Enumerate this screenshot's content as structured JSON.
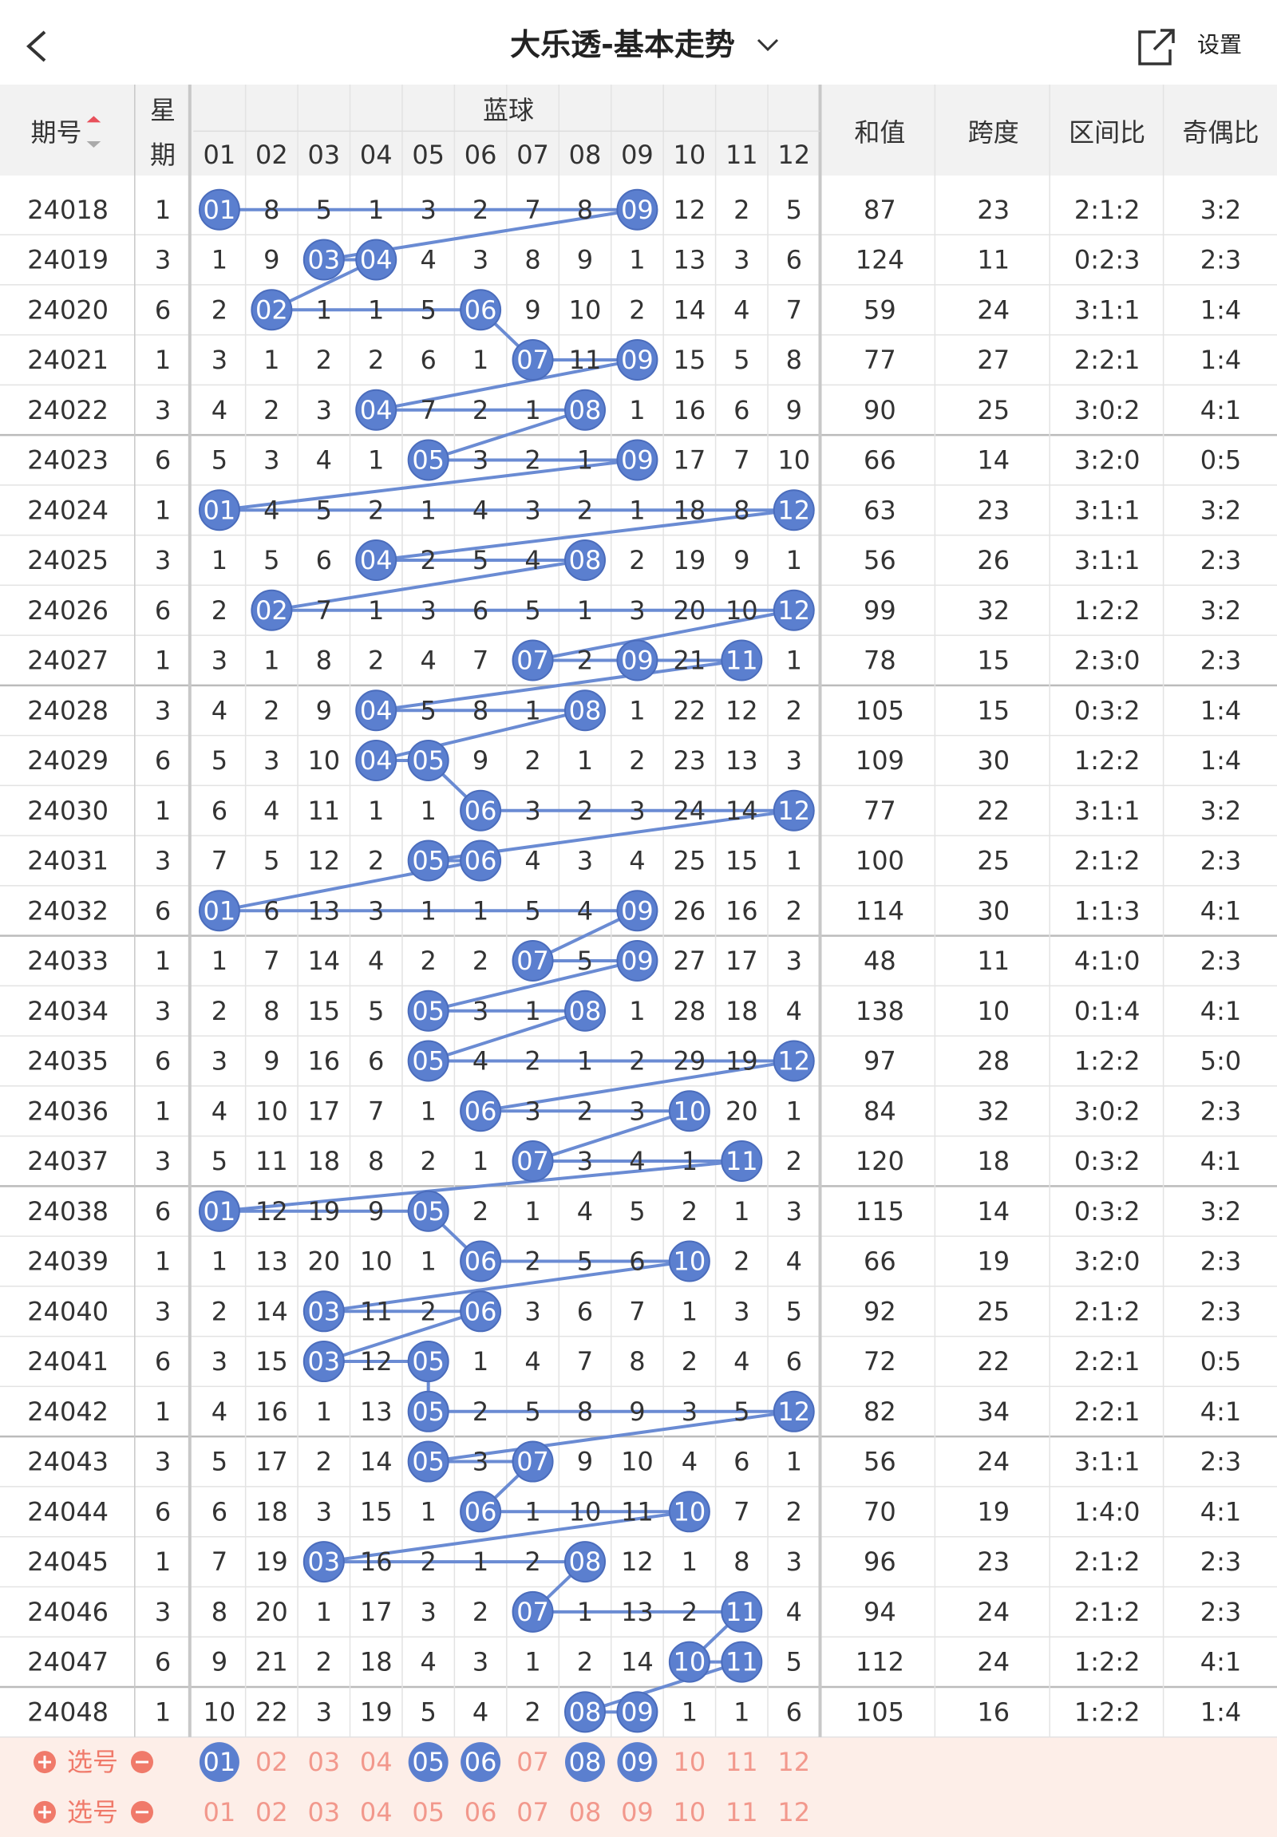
{
  "header": {
    "title": "大乐透-基本走势",
    "settings": "设置"
  },
  "table": {
    "columns": {
      "period": "期号",
      "weekday": [
        "星",
        "期"
      ],
      "blue": "蓝球",
      "balls": [
        "01",
        "02",
        "03",
        "04",
        "05",
        "06",
        "07",
        "08",
        "09",
        "10",
        "11",
        "12"
      ],
      "sum": "和值",
      "span": "跨度",
      "zone": "区间比",
      "odd_even": "奇偶比"
    },
    "rows": [
      [
        "24018",
        "1",
        [
          "01",
          "8",
          "5",
          "1",
          "3",
          "2",
          "7",
          "8",
          "09",
          "12",
          "2",
          "5"
        ],
        "87",
        "23",
        "2:1:2",
        "3:2"
      ],
      [
        "24019",
        "3",
        [
          "1",
          "9",
          "03",
          "04",
          "4",
          "3",
          "8",
          "9",
          "1",
          "13",
          "3",
          "6"
        ],
        "124",
        "11",
        "0:2:3",
        "2:3"
      ],
      [
        "24020",
        "6",
        [
          "2",
          "02",
          "1",
          "1",
          "5",
          "06",
          "9",
          "10",
          "2",
          "14",
          "4",
          "7"
        ],
        "59",
        "24",
        "3:1:1",
        "1:4"
      ],
      [
        "24021",
        "1",
        [
          "3",
          "1",
          "2",
          "2",
          "6",
          "1",
          "07",
          "11",
          "09",
          "15",
          "5",
          "8"
        ],
        "77",
        "27",
        "2:2:1",
        "1:4"
      ],
      [
        "24022",
        "3",
        [
          "4",
          "2",
          "3",
          "04",
          "7",
          "2",
          "1",
          "08",
          "1",
          "16",
          "6",
          "9"
        ],
        "90",
        "25",
        "3:0:2",
        "4:1"
      ],
      [
        "24023",
        "6",
        [
          "5",
          "3",
          "4",
          "1",
          "05",
          "3",
          "2",
          "1",
          "09",
          "17",
          "7",
          "10"
        ],
        "66",
        "14",
        "3:2:0",
        "0:5"
      ],
      [
        "24024",
        "1",
        [
          "01",
          "4",
          "5",
          "2",
          "1",
          "4",
          "3",
          "2",
          "1",
          "18",
          "8",
          "12"
        ],
        "63",
        "23",
        "3:1:1",
        "3:2"
      ],
      [
        "24025",
        "3",
        [
          "1",
          "5",
          "6",
          "04",
          "2",
          "5",
          "4",
          "08",
          "2",
          "19",
          "9",
          "1"
        ],
        "56",
        "26",
        "3:1:1",
        "2:3"
      ],
      [
        "24026",
        "6",
        [
          "2",
          "02",
          "7",
          "1",
          "3",
          "6",
          "5",
          "1",
          "3",
          "20",
          "10",
          "12"
        ],
        "99",
        "32",
        "1:2:2",
        "3:2"
      ],
      [
        "24027",
        "1",
        [
          "3",
          "1",
          "8",
          "2",
          "4",
          "7",
          "07",
          "2",
          "09",
          "21",
          "11",
          "1"
        ],
        "78",
        "15",
        "2:3:0",
        "2:3"
      ],
      [
        "24028",
        "3",
        [
          "4",
          "2",
          "9",
          "04",
          "5",
          "8",
          "1",
          "08",
          "1",
          "22",
          "12",
          "2"
        ],
        "105",
        "15",
        "0:3:2",
        "1:4"
      ],
      [
        "24029",
        "6",
        [
          "5",
          "3",
          "10",
          "04",
          "05",
          "9",
          "2",
          "1",
          "2",
          "23",
          "13",
          "3"
        ],
        "109",
        "30",
        "1:2:2",
        "1:4"
      ],
      [
        "24030",
        "1",
        [
          "6",
          "4",
          "11",
          "1",
          "1",
          "06",
          "3",
          "2",
          "3",
          "24",
          "14",
          "12"
        ],
        "77",
        "22",
        "3:1:1",
        "3:2"
      ],
      [
        "24031",
        "3",
        [
          "7",
          "5",
          "12",
          "2",
          "05",
          "06",
          "4",
          "3",
          "4",
          "25",
          "15",
          "1"
        ],
        "100",
        "25",
        "2:1:2",
        "2:3"
      ],
      [
        "24032",
        "6",
        [
          "01",
          "6",
          "13",
          "3",
          "1",
          "1",
          "5",
          "4",
          "09",
          "26",
          "16",
          "2"
        ],
        "114",
        "30",
        "1:1:3",
        "4:1"
      ],
      [
        "24033",
        "1",
        [
          "1",
          "7",
          "14",
          "4",
          "2",
          "2",
          "07",
          "5",
          "09",
          "27",
          "17",
          "3"
        ],
        "48",
        "11",
        "4:1:0",
        "2:3"
      ],
      [
        "24034",
        "3",
        [
          "2",
          "8",
          "15",
          "5",
          "05",
          "3",
          "1",
          "08",
          "1",
          "28",
          "18",
          "4"
        ],
        "138",
        "10",
        "0:1:4",
        "4:1"
      ],
      [
        "24035",
        "6",
        [
          "3",
          "9",
          "16",
          "6",
          "05",
          "4",
          "2",
          "1",
          "2",
          "29",
          "19",
          "12"
        ],
        "97",
        "28",
        "1:2:2",
        "5:0"
      ],
      [
        "24036",
        "1",
        [
          "4",
          "10",
          "17",
          "7",
          "1",
          "06",
          "3",
          "2",
          "3",
          "10",
          "20",
          "1"
        ],
        "84",
        "32",
        "3:0:2",
        "2:3"
      ],
      [
        "24037",
        "3",
        [
          "5",
          "11",
          "18",
          "8",
          "2",
          "1",
          "07",
          "3",
          "4",
          "1",
          "11",
          "2"
        ],
        "120",
        "18",
        "0:3:2",
        "4:1"
      ],
      [
        "24038",
        "6",
        [
          "01",
          "12",
          "19",
          "9",
          "05",
          "2",
          "1",
          "4",
          "5",
          "2",
          "1",
          "3"
        ],
        "115",
        "14",
        "0:3:2",
        "3:2"
      ],
      [
        "24039",
        "1",
        [
          "1",
          "13",
          "20",
          "10",
          "1",
          "06",
          "2",
          "5",
          "6",
          "10",
          "2",
          "4"
        ],
        "66",
        "19",
        "3:2:0",
        "2:3"
      ],
      [
        "24040",
        "3",
        [
          "2",
          "14",
          "03",
          "11",
          "2",
          "06",
          "3",
          "6",
          "7",
          "1",
          "3",
          "5"
        ],
        "92",
        "25",
        "2:1:2",
        "2:3"
      ],
      [
        "24041",
        "6",
        [
          "3",
          "15",
          "03",
          "12",
          "05",
          "1",
          "4",
          "7",
          "8",
          "2",
          "4",
          "6"
        ],
        "72",
        "22",
        "2:2:1",
        "0:5"
      ],
      [
        "24042",
        "1",
        [
          "4",
          "16",
          "1",
          "13",
          "05",
          "2",
          "5",
          "8",
          "9",
          "3",
          "5",
          "12"
        ],
        "82",
        "34",
        "2:2:1",
        "4:1"
      ],
      [
        "24043",
        "3",
        [
          "5",
          "17",
          "2",
          "14",
          "05",
          "3",
          "07",
          "9",
          "10",
          "4",
          "6",
          "1"
        ],
        "56",
        "24",
        "3:1:1",
        "2:3"
      ],
      [
        "24044",
        "6",
        [
          "6",
          "18",
          "3",
          "15",
          "1",
          "06",
          "1",
          "10",
          "11",
          "10",
          "7",
          "2"
        ],
        "70",
        "19",
        "1:4:0",
        "4:1"
      ],
      [
        "24045",
        "1",
        [
          "7",
          "19",
          "03",
          "16",
          "2",
          "1",
          "2",
          "08",
          "12",
          "1",
          "8",
          "3"
        ],
        "96",
        "23",
        "2:1:2",
        "2:3"
      ],
      [
        "24046",
        "3",
        [
          "8",
          "20",
          "1",
          "17",
          "3",
          "2",
          "07",
          "1",
          "13",
          "2",
          "11",
          "4"
        ],
        "94",
        "24",
        "2:1:2",
        "2:3"
      ],
      [
        "24047",
        "6",
        [
          "9",
          "21",
          "2",
          "18",
          "4",
          "3",
          "1",
          "2",
          "14",
          "10",
          "11",
          "5"
        ],
        "112",
        "24",
        "1:2:2",
        "4:1"
      ],
      [
        "24048",
        "1",
        [
          "10",
          "22",
          "3",
          "19",
          "5",
          "4",
          "2",
          "08",
          "09",
          "1",
          "1",
          "6"
        ],
        "105",
        "16",
        "1:2:2",
        "1:4"
      ]
    ]
  },
  "picks": [
    {
      "label": "选号",
      "balls": [
        "01",
        "02",
        "03",
        "04",
        "05",
        "06",
        "07",
        "08",
        "09",
        "10",
        "11",
        "12"
      ],
      "selected": [
        true,
        false,
        false,
        false,
        true,
        true,
        false,
        true,
        true,
        false,
        false,
        false
      ]
    },
    {
      "label": "选号",
      "balls": [
        "01",
        "02",
        "03",
        "04",
        "05",
        "06",
        "07",
        "08",
        "09",
        "10",
        "11",
        "12"
      ],
      "selected": [
        false,
        false,
        false,
        false,
        false,
        false,
        false,
        false,
        false,
        false,
        false,
        false
      ]
    }
  ]
}
